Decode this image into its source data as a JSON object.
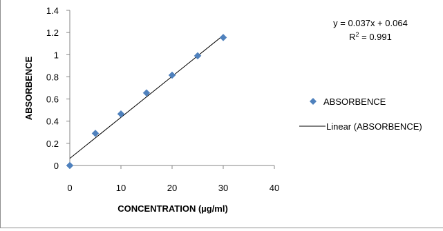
{
  "chart_data": {
    "type": "scatter",
    "xlabel": "CONCENTRATION (µg/ml)",
    "ylabel": "ABSORBENCE",
    "xlim": [
      0,
      40
    ],
    "ylim": [
      0,
      1.4
    ],
    "xticks": [
      0,
      10,
      20,
      30,
      40
    ],
    "yticks": [
      0,
      0.2,
      0.4,
      0.6,
      0.8,
      1,
      1.2,
      1.4
    ],
    "xtick_labels": [
      "0",
      "10",
      "20",
      "30",
      "40"
    ],
    "ytick_labels": [
      "0",
      "0.2",
      "0.4",
      "0.6",
      "0.8",
      "1",
      "1.2",
      "1.4"
    ],
    "grid": false,
    "legend_position": "right",
    "series": [
      {
        "name": "ABSORBENCE",
        "marker": "diamond",
        "color": "#4f81bd",
        "x": [
          0,
          5,
          10,
          15,
          20,
          25,
          30
        ],
        "y": [
          0,
          0.29,
          0.465,
          0.655,
          0.815,
          0.99,
          1.155
        ]
      }
    ],
    "trendline": {
      "name": "Linear (ABSORBENCE)",
      "slope": 0.037,
      "intercept": 0.064,
      "x_range": [
        0,
        30
      ],
      "color": "#000000"
    },
    "annotations": {
      "equation": "y = 0.037x + 0.064",
      "r_squared_prefix": "R",
      "r_squared_exp": "2",
      "r_squared_suffix": " = 0.991"
    },
    "legend": [
      {
        "label": "ABSORBENCE",
        "kind": "marker"
      },
      {
        "label": "Linear (ABSORBENCE)",
        "kind": "line"
      }
    ]
  }
}
